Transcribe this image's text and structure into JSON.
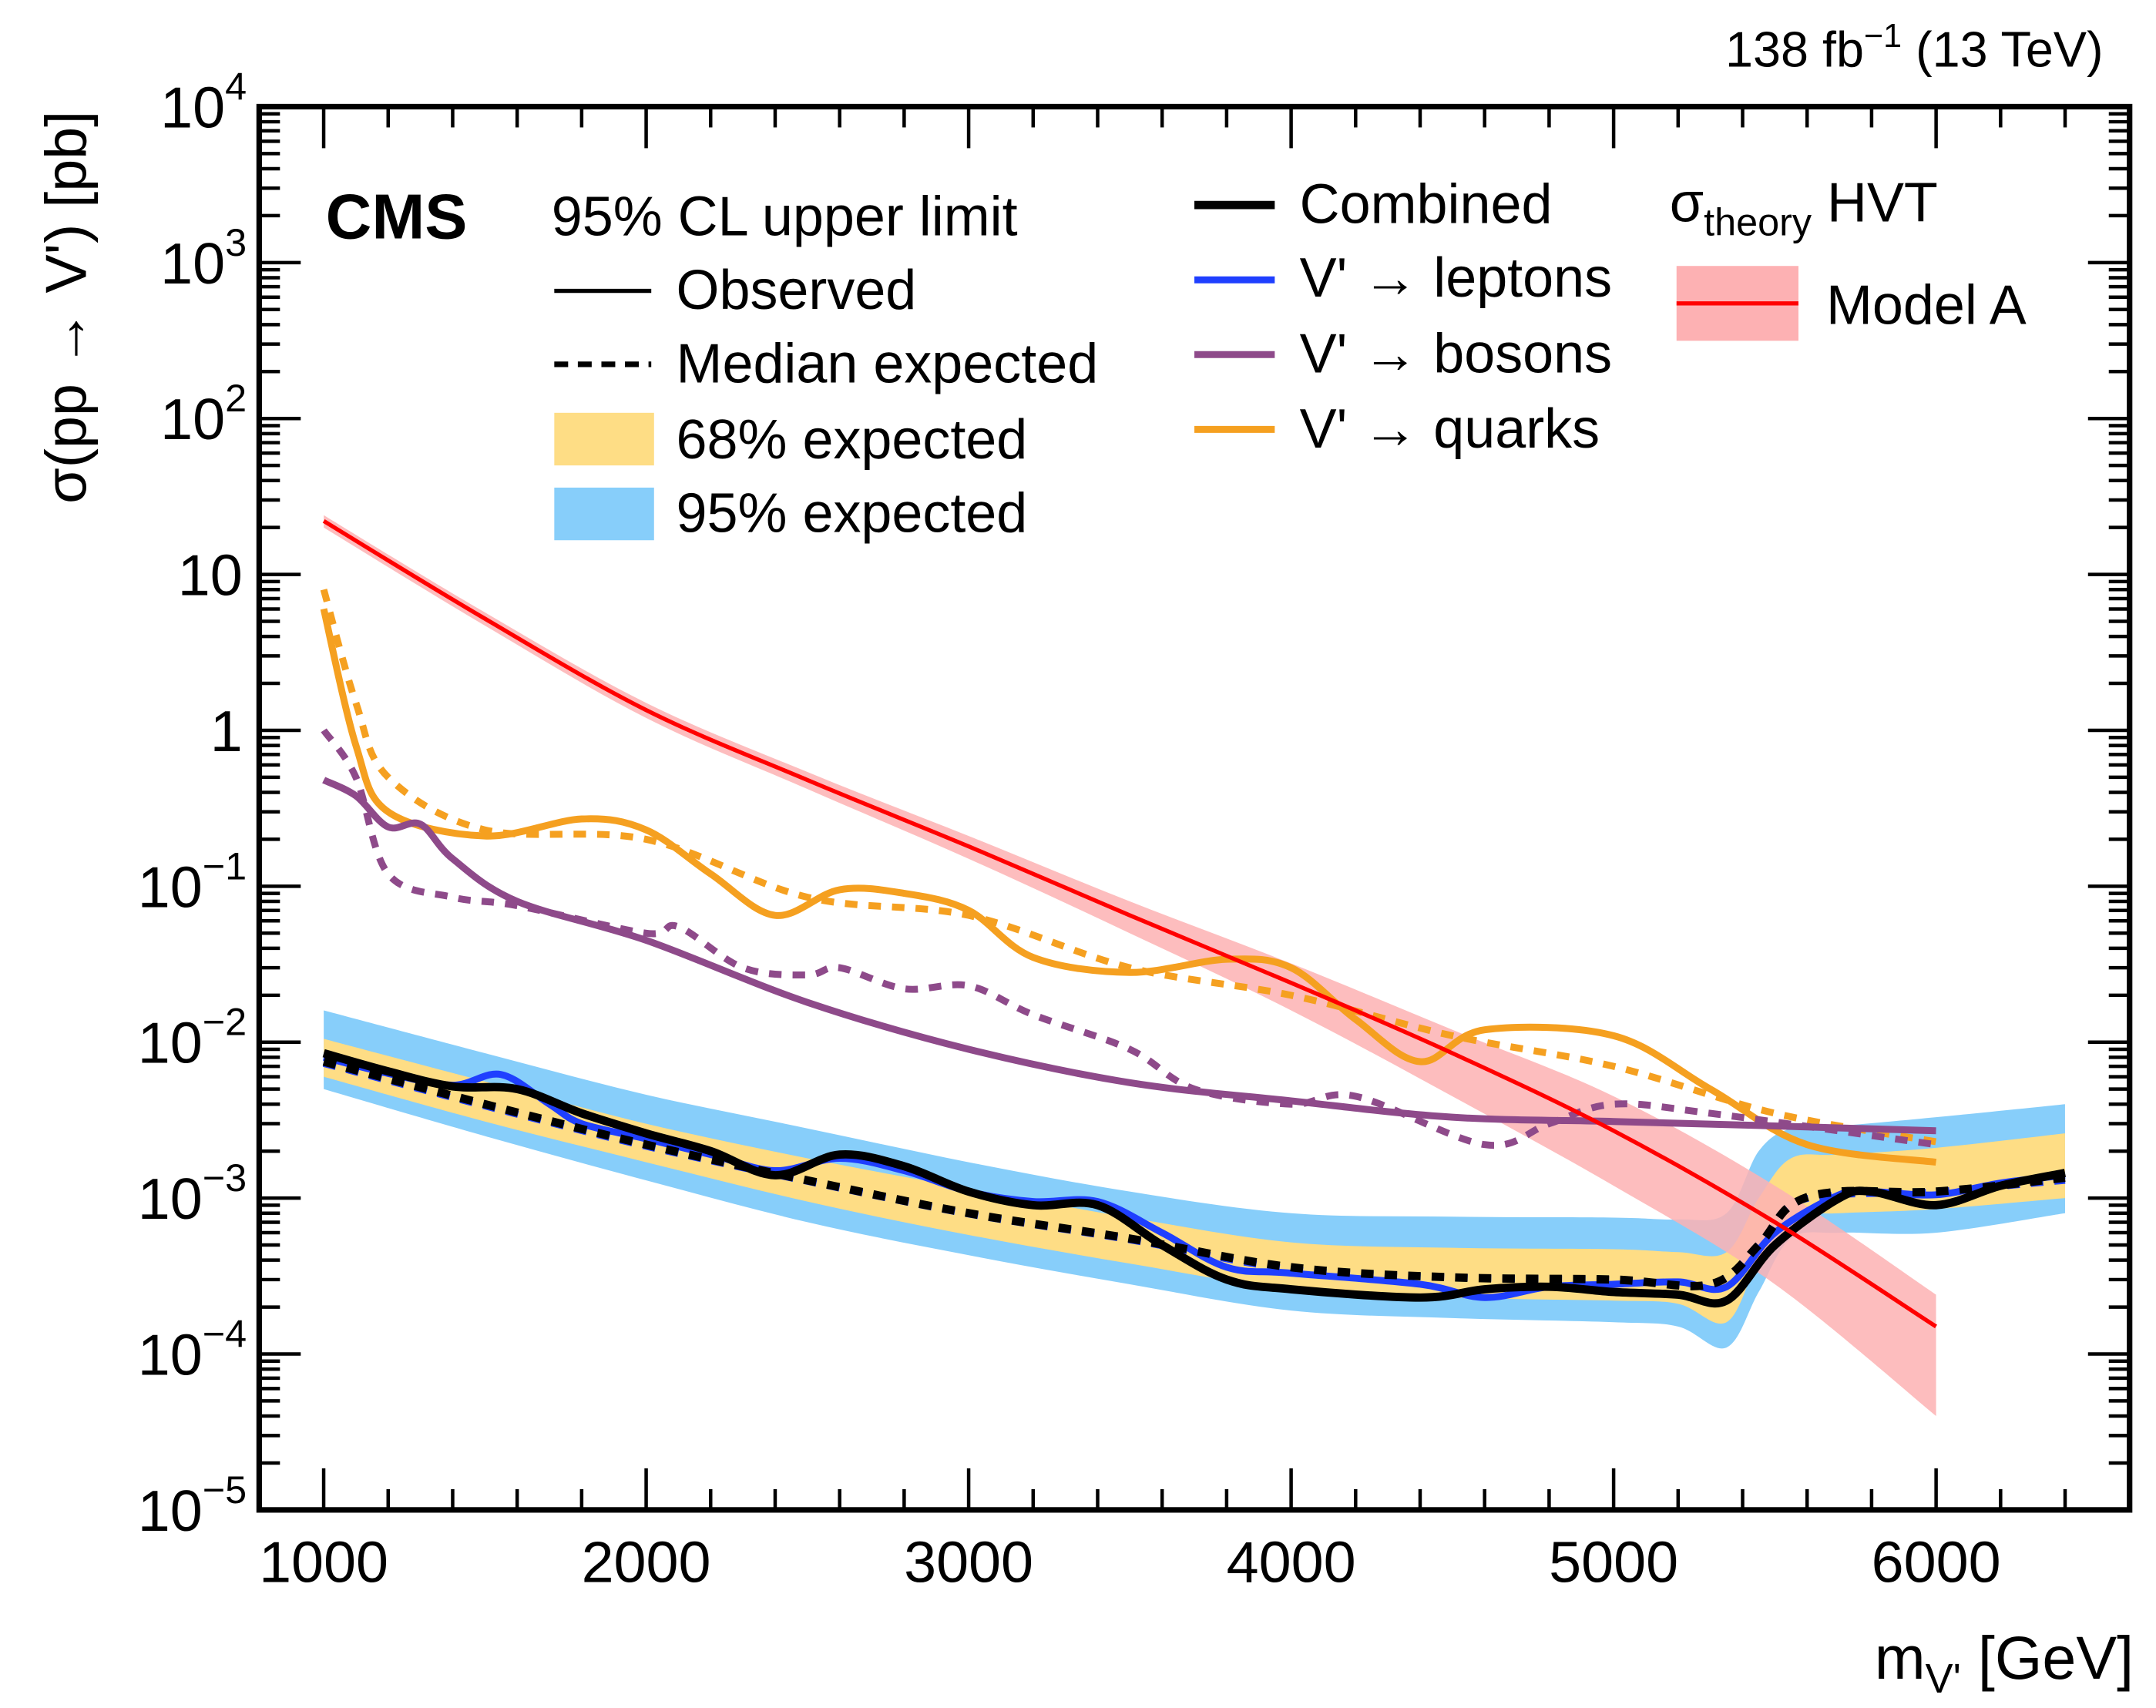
{
  "chart_data": {
    "type": "line",
    "title": "",
    "experiment_label": "CMS",
    "lumi_label": {
      "value": "138 fb",
      "sup": "−1",
      "energy": " (13 TeV)"
    },
    "xlabel": {
      "main": "m",
      "sub": "V'",
      "unit": " [GeV]"
    },
    "ylabel": "σ(pp → V') [pb]",
    "xlim": [
      800,
      6600
    ],
    "ylim": [
      1e-05,
      10000.0
    ],
    "yscale": "log",
    "x_ticks": [
      1000,
      2000,
      3000,
      4000,
      5000,
      6000
    ],
    "x_tick_labels": [
      "1000",
      "2000",
      "3000",
      "4000",
      "5000",
      "6000"
    ],
    "y_tick_labels": [
      {
        "base": "10",
        "exp": "−5"
      },
      {
        "base": "10",
        "exp": "−4"
      },
      {
        "base": "10",
        "exp": "−3"
      },
      {
        "base": "10",
        "exp": "−2"
      },
      {
        "base": "10",
        "exp": "−1"
      },
      {
        "base": "1",
        "exp": ""
      },
      {
        "base": "10",
        "exp": ""
      },
      {
        "base": "10",
        "exp": "2"
      },
      {
        "base": "10",
        "exp": "3"
      },
      {
        "base": "10",
        "exp": "4"
      }
    ],
    "colors": {
      "combined": "#000000",
      "leptons": "#1f3fff",
      "bosons": "#8e4a8a",
      "quarks": "#f5a020",
      "band68": "#fedd85",
      "band95": "#87cefa",
      "theory": "#ff0000",
      "theory_band": "#fdb1b3"
    },
    "legend": {
      "header": "95% CL upper limit",
      "observed": "Observed",
      "expected": "Median expected",
      "band68": "68% expected",
      "band95": "95% expected",
      "combined": "Combined",
      "leptons": "V' → leptons",
      "bosons": "V' → bosons",
      "quarks": "V' → quarks",
      "theory_header": {
        "main": "σ",
        "sub": "theory",
        "rest": " HVT"
      },
      "theory": "Model A"
    },
    "bands": {
      "x": [
        1000,
        1500,
        2000,
        2500,
        3000,
        3500,
        4000,
        4500,
        5000,
        5200,
        5350,
        5450,
        5550,
        5700,
        6000,
        6400
      ],
      "e95_lo": [
        0.005,
        0.0025,
        0.0013,
        0.0007,
        0.00043,
        0.00028,
        0.00019,
        0.00017,
        0.00016,
        0.00015,
        0.00011,
        0.00025,
        0.00055,
        0.0006,
        0.0006,
        0.0008
      ],
      "e68_lo": [
        0.006,
        0.0031,
        0.0017,
        0.00095,
        0.00058,
        0.00038,
        0.00026,
        0.00023,
        0.00022,
        0.00021,
        0.00016,
        0.0004,
        0.00075,
        0.0008,
        0.00085,
        0.001
      ],
      "e68_hi": [
        0.0105,
        0.0056,
        0.003,
        0.0018,
        0.00115,
        0.00075,
        0.00052,
        0.00048,
        0.00047,
        0.00045,
        0.00045,
        0.001,
        0.0018,
        0.0019,
        0.0021,
        0.0026
      ],
      "e95_hi": [
        0.016,
        0.0085,
        0.0046,
        0.0028,
        0.0017,
        0.0011,
        0.0008,
        0.00076,
        0.00075,
        0.00073,
        0.0008,
        0.002,
        0.0028,
        0.0029,
        0.0033,
        0.004
      ]
    },
    "theory": {
      "name": "Model A",
      "x": [
        1000,
        1500,
        2000,
        2500,
        3000,
        3500,
        4000,
        4500,
        5000,
        5500,
        6000
      ],
      "y": [
        22,
        5.2,
        1.35,
        0.48,
        0.18,
        0.065,
        0.024,
        0.0085,
        0.0027,
        0.0007,
        0.00015
      ],
      "lo": [
        20,
        4.7,
        1.2,
        0.42,
        0.15,
        0.05,
        0.016,
        0.0045,
        0.0012,
        0.00028,
        4e-05
      ],
      "hi": [
        24,
        5.7,
        1.5,
        0.54,
        0.21,
        0.08,
        0.032,
        0.012,
        0.0045,
        0.0012,
        0.00024
      ]
    },
    "series": [
      {
        "name": "Combined",
        "style": "observed",
        "color_key": "combined",
        "x": [
          1000,
          1200,
          1400,
          1600,
          1800,
          2000,
          2200,
          2400,
          2600,
          2800,
          3000,
          3200,
          3400,
          3600,
          3800,
          4000,
          4400,
          4600,
          4800,
          5000,
          5200,
          5350,
          5500,
          5700,
          5800,
          6000,
          6200,
          6400
        ],
        "y": [
          0.0085,
          0.0065,
          0.0052,
          0.005,
          0.0035,
          0.0026,
          0.002,
          0.0014,
          0.0019,
          0.0016,
          0.0011,
          0.0009,
          0.0009,
          0.0005,
          0.0003,
          0.00026,
          0.00023,
          0.00026,
          0.00027,
          0.00025,
          0.00024,
          0.00022,
          0.0005,
          0.001,
          0.0011,
          0.0009,
          0.0012,
          0.00145
        ]
      },
      {
        "name": "Combined",
        "style": "expected",
        "color_key": "combined",
        "x": [
          1000,
          1500,
          2000,
          2500,
          3000,
          3500,
          4000,
          4500,
          5000,
          5300,
          5450,
          5550,
          5700,
          6000,
          6400
        ],
        "y": [
          0.0075,
          0.004,
          0.0022,
          0.0013,
          0.0008,
          0.00055,
          0.00036,
          0.00031,
          0.0003,
          0.00028,
          0.0005,
          0.0009,
          0.0011,
          0.0011,
          0.00135
        ]
      },
      {
        "name": "V' → leptons",
        "style": "observed",
        "color_key": "leptons",
        "x": [
          1000,
          1200,
          1400,
          1550,
          1700,
          1800,
          2000,
          2200,
          2400,
          2600,
          2800,
          3000,
          3200,
          3400,
          3600,
          3800,
          4000,
          4400,
          4600,
          4800,
          5000,
          5200,
          5350,
          5500,
          5700,
          5800,
          6000,
          6200,
          6400
        ],
        "y": [
          0.008,
          0.0063,
          0.0053,
          0.0062,
          0.004,
          0.003,
          0.0024,
          0.0019,
          0.0015,
          0.0018,
          0.0015,
          0.0011,
          0.00095,
          0.00095,
          0.0006,
          0.00036,
          0.00033,
          0.00028,
          0.00023,
          0.00027,
          0.00028,
          0.00029,
          0.00027,
          0.0006,
          0.00105,
          0.0011,
          0.00105,
          0.00125,
          0.0014
        ]
      },
      {
        "name": "V' → leptons",
        "style": "expected",
        "color_key": "leptons",
        "x": [
          1000,
          1500,
          2000,
          2500,
          3000,
          3500,
          4000,
          4500,
          5000,
          5300,
          5450,
          5550,
          5700,
          6000,
          6400
        ],
        "y": [
          0.0073,
          0.0039,
          0.00215,
          0.00128,
          0.00079,
          0.00054,
          0.00035,
          0.00031,
          0.0003,
          0.00028,
          0.0005,
          0.0009,
          0.00105,
          0.0011,
          0.0013
        ]
      },
      {
        "name": "V' → bosons",
        "style": "observed",
        "color_key": "bosons",
        "x": [
          1000,
          1100,
          1200,
          1300,
          1400,
          1600,
          2000,
          2500,
          3000,
          3500,
          4000,
          4500,
          5000,
          5500,
          6000
        ],
        "y": [
          0.48,
          0.38,
          0.24,
          0.25,
          0.15,
          0.08,
          0.045,
          0.018,
          0.009,
          0.0055,
          0.0042,
          0.0033,
          0.0031,
          0.0029,
          0.0027
        ]
      },
      {
        "name": "V' → bosons",
        "style": "expected",
        "color_key": "bosons",
        "x": [
          1000,
          1100,
          1200,
          1400,
          1600,
          2000,
          2100,
          2300,
          2500,
          2600,
          2800,
          3000,
          3200,
          3500,
          3700,
          4000,
          4200,
          4600,
          4800,
          5000,
          5300,
          6000
        ],
        "y": [
          1.0,
          0.5,
          0.12,
          0.085,
          0.075,
          0.05,
          0.055,
          0.03,
          0.027,
          0.03,
          0.022,
          0.023,
          0.015,
          0.009,
          0.005,
          0.004,
          0.0045,
          0.0022,
          0.003,
          0.004,
          0.0035,
          0.0022
        ]
      },
      {
        "name": "V' → quarks",
        "style": "observed",
        "color_key": "quarks",
        "x": [
          1000,
          1100,
          1200,
          1500,
          1800,
          2000,
          2200,
          2400,
          2600,
          2800,
          3000,
          3200,
          3500,
          3800,
          4000,
          4200,
          4400,
          4600,
          5000,
          5300,
          5600,
          6000
        ],
        "y": [
          6,
          0.8,
          0.3,
          0.21,
          0.27,
          0.23,
          0.12,
          0.065,
          0.095,
          0.09,
          0.07,
          0.035,
          0.028,
          0.034,
          0.03,
          0.014,
          0.0075,
          0.012,
          0.011,
          0.005,
          0.0022,
          0.0017
        ]
      },
      {
        "name": "V' → quarks",
        "style": "expected",
        "color_key": "quarks",
        "x": [
          1000,
          1100,
          1200,
          1500,
          2000,
          2500,
          3000,
          3500,
          4000,
          4500,
          5000,
          5500,
          6000
        ],
        "y": [
          8,
          1.5,
          0.5,
          0.23,
          0.2,
          0.085,
          0.065,
          0.03,
          0.02,
          0.011,
          0.007,
          0.0035,
          0.0023
        ]
      }
    ]
  }
}
